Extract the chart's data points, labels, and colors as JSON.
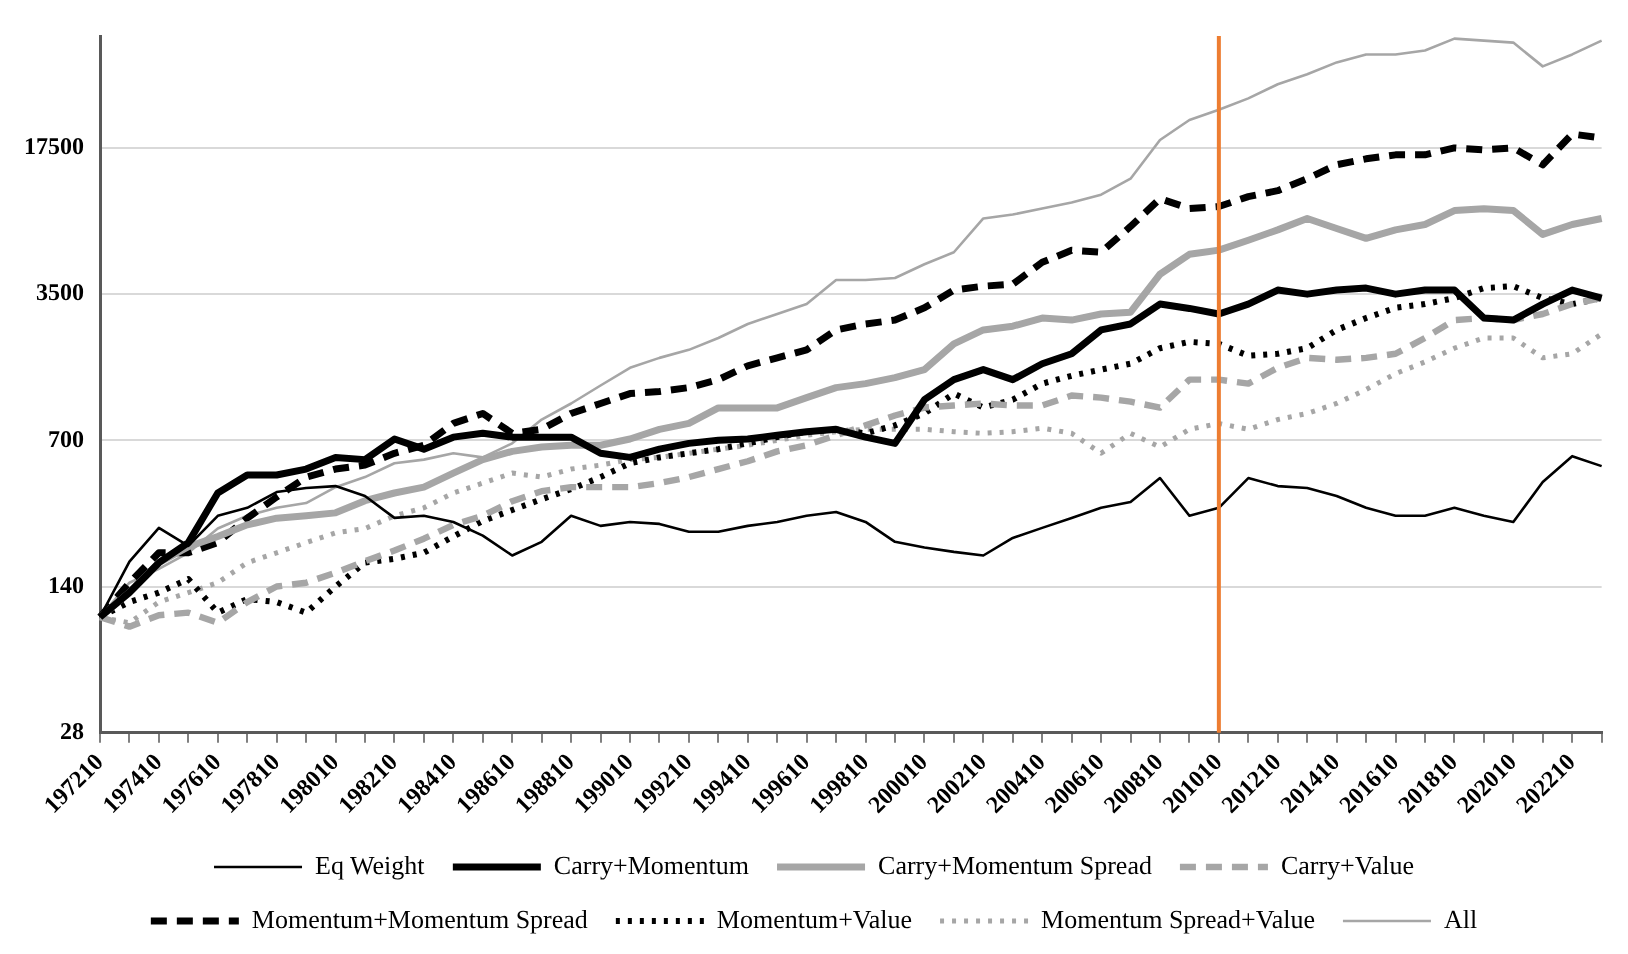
{
  "chart_data": {
    "type": "line",
    "categories": [
      "197210",
      null,
      "197410",
      null,
      "197610",
      null,
      "197810",
      null,
      "198010",
      null,
      "198210",
      null,
      "198410",
      null,
      "198610",
      null,
      "198810",
      null,
      "199010",
      null,
      "199210",
      null,
      "199410",
      null,
      "199610",
      null,
      "199810",
      null,
      "200010",
      null,
      "200210",
      null,
      "200410",
      null,
      "200610",
      null,
      "200810",
      null,
      "201010",
      null,
      "201210",
      null,
      "201410",
      null,
      "201610",
      null,
      "201810",
      null,
      "202010",
      null,
      "202210",
      null
    ],
    "series": [
      {
        "name": "Eq Weight",
        "color": "#000000",
        "line_style": "solid",
        "values": [
          100,
          184,
          267,
          219,
          305,
          333,
          396,
          414,
          423,
          379,
          298,
          305,
          285,
          245,
          197,
          229,
          305,
          273,
          285,
          279,
          256,
          256,
          273,
          285,
          305,
          318,
          285,
          229,
          215,
          205,
          197,
          239,
          267,
          298,
          333,
          355,
          462,
          305,
          333,
          462,
          423,
          414,
          379,
          333,
          305,
          305,
          333,
          305,
          285,
          442,
          588,
          527
        ]
      },
      {
        "name": "Carry+Momentum",
        "color": "#000000",
        "line_style": "solid",
        "values": [
          100,
          131,
          182,
          227,
          392,
          478,
          478,
          510,
          580,
          566,
          710,
          635,
          725,
          756,
          725,
          725,
          725,
          607,
          580,
          635,
          677,
          700,
          710,
          740,
          770,
          790,
          725,
          677,
          1095,
          1365,
          1525,
          1365,
          1627,
          1815,
          2360,
          2520,
          3137,
          2990,
          2812,
          3137,
          3660,
          3500,
          3660,
          3740,
          3500,
          3660,
          3660,
          2690,
          2630,
          3137,
          3660,
          3350
        ]
      },
      {
        "name": "Carry+Momentum Spread",
        "color": "#a6a6a6",
        "line_style": "solid",
        "values": [
          100,
          131,
          182,
          217,
          243,
          276,
          297,
          305,
          315,
          360,
          392,
          418,
          488,
          566,
          620,
          650,
          663,
          663,
          710,
          790,
          843,
          1000,
          1000,
          1000,
          1120,
          1250,
          1307,
          1395,
          1525,
          2025,
          2360,
          2460,
          2690,
          2630,
          2812,
          2870,
          4357,
          5424,
          5680,
          6330,
          7100,
          8050,
          7210,
          6470,
          7100,
          7533,
          8780,
          8970,
          8780,
          6752,
          7533,
          8050
        ]
      },
      {
        "name": "Carry+Value",
        "color": "#a6a6a6",
        "line_style": "dashed",
        "values": [
          100,
          90,
          102,
          105,
          94,
          118,
          140,
          146,
          163,
          185,
          208,
          237,
          276,
          305,
          358,
          400,
          418,
          418,
          418,
          437,
          467,
          510,
          556,
          620,
          663,
          740,
          825,
          920,
          1004,
          1027,
          1050,
          1027,
          1027,
          1146,
          1120,
          1071,
          1004,
          1365,
          1365,
          1307,
          1555,
          1735,
          1700,
          1735,
          1815,
          2160,
          2630,
          2690,
          2630,
          2812,
          3137,
          3350
        ]
      },
      {
        "name": "Momentum+Momentum Spread",
        "color": "#000000",
        "line_style": "dashed",
        "values": [
          100,
          146,
          203,
          203,
          227,
          297,
          375,
          467,
          510,
          533,
          607,
          663,
          843,
          941,
          756,
          790,
          941,
          1050,
          1171,
          1197,
          1251,
          1365,
          1590,
          1735,
          1895,
          2360,
          2520,
          2630,
          3010,
          3660,
          3820,
          3905,
          4970,
          5670,
          5550,
          7370,
          10016,
          8980,
          9180,
          10237,
          10930,
          12470,
          14532,
          15520,
          16214,
          16214,
          17500,
          17120,
          17500,
          14532,
          20398,
          19500
        ]
      },
      {
        "name": "Momentum+Value",
        "color": "#000000",
        "line_style": "dotted",
        "values": [
          100,
          118,
          131,
          152,
          105,
          122,
          118,
          105,
          140,
          182,
          190,
          203,
          243,
          288,
          325,
          366,
          409,
          467,
          544,
          580,
          607,
          635,
          677,
          725,
          770,
          790,
          756,
          825,
          941,
          1171,
          1004,
          1095,
          1307,
          1425,
          1525,
          1627,
          1930,
          2070,
          2025,
          1775,
          1815,
          1930,
          2360,
          2690,
          3010,
          3137,
          3350,
          3740,
          3820,
          3350,
          3137,
          3350
        ]
      },
      {
        "name": "Momentum Spread+Value",
        "color": "#a6a6a6",
        "line_style": "dotted",
        "values": [
          100,
          94,
          118,
          131,
          146,
          182,
          203,
          227,
          253,
          265,
          305,
          333,
          392,
          437,
          488,
          467,
          510,
          533,
          566,
          580,
          607,
          635,
          663,
          700,
          740,
          770,
          790,
          790,
          790,
          770,
          756,
          770,
          800,
          756,
          607,
          756,
          650,
          790,
          843,
          790,
          880,
          941,
          1050,
          1225,
          1458,
          1660,
          1930,
          2160,
          2160,
          1735,
          1815,
          2259
        ]
      },
      {
        "name": "All",
        "color": "#a6a6a6",
        "line_style": "solid",
        "values": [
          100,
          146,
          170,
          203,
          265,
          305,
          333,
          351,
          418,
          467,
          544,
          566,
          607,
          580,
          677,
          880,
          1050,
          1280,
          1555,
          1735,
          1895,
          2160,
          2520,
          2812,
          3137,
          4090,
          4090,
          4180,
          4861,
          5550,
          8050,
          8405,
          8980,
          9590,
          10463,
          12470,
          19100,
          23800,
          26620,
          30200,
          35266,
          39347,
          44870,
          48980,
          48980,
          51180,
          58300,
          57040,
          55800,
          42950,
          48980,
          57040
        ]
      }
    ],
    "log": "y",
    "ylim": [
      28,
      60000
    ],
    "yticks": [
      28,
      140,
      700,
      3500,
      17500
    ],
    "grid": "y",
    "legend": "bottom",
    "marker": "none",
    "ref_lines": [
      {
        "axis": "x",
        "value": "201010",
        "color": "#ed7d31"
      }
    ]
  }
}
